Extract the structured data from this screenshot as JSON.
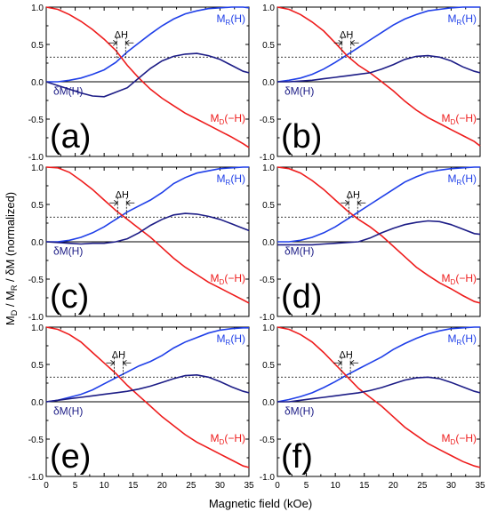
{
  "figure": {
    "ylabel_main": "M",
    "ylabel_sub1": "D",
    "ylabel_mid1": " / M",
    "ylabel_sub2": "R",
    "ylabel_rest": " / δM (normalized)",
    "xlabel": "Magnetic field (kOe)",
    "xticks": [
      "0",
      "5",
      "10",
      "15",
      "20",
      "25",
      "30",
      "35"
    ],
    "yticks": [
      "-1.0",
      "-0.5",
      "0.0",
      "0.5",
      "1.0"
    ]
  },
  "labels": {
    "mr_main": "M",
    "mr_sub": "R",
    "mr_arg": "(H)",
    "md_main": "M",
    "md_sub": "D",
    "md_arg": "(−H)",
    "dm": "δM(H)",
    "dh": "ΔH"
  },
  "colors": {
    "MR": "#1f3fe8",
    "MD": "#ee1c1c",
    "dM": "#1c1c86",
    "axis": "#000000"
  },
  "chart_data": [
    {
      "type": "line",
      "panel": "(a)",
      "xlim": [
        0,
        35
      ],
      "ylim": [
        -1.0,
        1.0
      ],
      "hline": 0.33,
      "series": [
        {
          "name": "M_R(H)",
          "x": [
            0,
            2,
            4,
            6,
            8,
            10,
            12,
            14,
            16,
            18,
            20,
            22,
            24,
            26,
            28,
            30,
            32,
            34,
            35
          ],
          "y": [
            0.0,
            0.0,
            0.02,
            0.05,
            0.1,
            0.16,
            0.26,
            0.4,
            0.52,
            0.64,
            0.75,
            0.84,
            0.91,
            0.95,
            0.98,
            0.99,
            1.0,
            1.0,
            0.99
          ]
        },
        {
          "name": "M_D(−H)",
          "x": [
            0,
            2,
            4,
            6,
            8,
            10,
            12,
            14,
            16,
            18,
            20,
            22,
            24,
            26,
            28,
            30,
            32,
            34,
            35
          ],
          "y": [
            1.0,
            0.97,
            0.9,
            0.81,
            0.7,
            0.57,
            0.42,
            0.22,
            0.05,
            -0.1,
            -0.22,
            -0.32,
            -0.42,
            -0.5,
            -0.58,
            -0.66,
            -0.74,
            -0.83,
            -0.88
          ]
        },
        {
          "name": "δM(H)",
          "x": [
            0,
            2,
            4,
            6,
            8,
            10,
            12,
            14,
            16,
            18,
            20,
            22,
            24,
            26,
            28,
            30,
            32,
            34,
            35
          ],
          "y": [
            0.0,
            -0.05,
            -0.1,
            -0.15,
            -0.19,
            -0.2,
            -0.14,
            -0.08,
            0.05,
            0.18,
            0.28,
            0.34,
            0.37,
            0.38,
            0.35,
            0.3,
            0.22,
            0.14,
            0.12
          ]
        }
      ]
    },
    {
      "type": "line",
      "panel": "(b)",
      "xlim": [
        0,
        35
      ],
      "ylim": [
        -1.0,
        1.0
      ],
      "hline": 0.33,
      "series": [
        {
          "name": "M_R(H)",
          "x": [
            0,
            2,
            4,
            6,
            8,
            10,
            12,
            14,
            16,
            18,
            20,
            22,
            24,
            26,
            28,
            30,
            32,
            34,
            35
          ],
          "y": [
            0.0,
            0.02,
            0.05,
            0.1,
            0.17,
            0.26,
            0.36,
            0.46,
            0.56,
            0.66,
            0.76,
            0.84,
            0.9,
            0.95,
            0.97,
            0.99,
            1.0,
            1.0,
            1.0
          ]
        },
        {
          "name": "M_D(−H)",
          "x": [
            0,
            2,
            4,
            6,
            8,
            10,
            12,
            14,
            16,
            18,
            20,
            22,
            24,
            26,
            28,
            30,
            32,
            34,
            35
          ],
          "y": [
            1.0,
            0.97,
            0.9,
            0.8,
            0.68,
            0.52,
            0.35,
            0.22,
            0.12,
            0.0,
            -0.12,
            -0.26,
            -0.38,
            -0.48,
            -0.56,
            -0.64,
            -0.72,
            -0.8,
            -0.86
          ]
        },
        {
          "name": "δM(H)",
          "x": [
            0,
            2,
            4,
            6,
            8,
            10,
            12,
            14,
            16,
            18,
            20,
            22,
            24,
            26,
            28,
            30,
            32,
            34,
            35
          ],
          "y": [
            0.0,
            0.0,
            0.01,
            0.02,
            0.04,
            0.06,
            0.08,
            0.1,
            0.12,
            0.17,
            0.23,
            0.3,
            0.34,
            0.35,
            0.33,
            0.28,
            0.2,
            0.14,
            0.12
          ]
        }
      ]
    },
    {
      "type": "line",
      "panel": "(c)",
      "xlim": [
        0,
        35
      ],
      "ylim": [
        -1.0,
        1.0
      ],
      "hline": 0.33,
      "series": [
        {
          "name": "M_R(H)",
          "x": [
            0,
            2,
            4,
            6,
            8,
            10,
            12,
            14,
            16,
            18,
            20,
            22,
            24,
            26,
            28,
            30,
            32,
            34,
            35
          ],
          "y": [
            0.0,
            0.0,
            0.02,
            0.06,
            0.12,
            0.2,
            0.3,
            0.4,
            0.48,
            0.56,
            0.66,
            0.78,
            0.86,
            0.92,
            0.95,
            0.98,
            0.99,
            1.0,
            1.0
          ]
        },
        {
          "name": "M_D(−H)",
          "x": [
            0,
            2,
            4,
            6,
            8,
            10,
            12,
            14,
            16,
            18,
            20,
            22,
            24,
            26,
            28,
            30,
            32,
            34,
            35
          ],
          "y": [
            1.0,
            0.99,
            0.93,
            0.82,
            0.7,
            0.56,
            0.42,
            0.3,
            0.18,
            0.06,
            -0.08,
            -0.22,
            -0.34,
            -0.44,
            -0.54,
            -0.62,
            -0.7,
            -0.78,
            -0.82
          ]
        },
        {
          "name": "δM(H)",
          "x": [
            0,
            2,
            4,
            6,
            8,
            10,
            12,
            14,
            16,
            18,
            20,
            22,
            24,
            26,
            28,
            30,
            32,
            34,
            35
          ],
          "y": [
            0.0,
            -0.01,
            -0.02,
            -0.03,
            -0.02,
            -0.02,
            0.0,
            0.04,
            0.12,
            0.22,
            0.3,
            0.36,
            0.38,
            0.37,
            0.34,
            0.3,
            0.24,
            0.18,
            0.15
          ]
        }
      ]
    },
    {
      "type": "line",
      "panel": "(d)",
      "xlim": [
        0,
        35
      ],
      "ylim": [
        -1.0,
        1.0
      ],
      "hline": 0.33,
      "series": [
        {
          "name": "M_R(H)",
          "x": [
            0,
            2,
            4,
            6,
            8,
            10,
            12,
            14,
            16,
            18,
            20,
            22,
            24,
            26,
            28,
            30,
            32,
            34,
            35
          ],
          "y": [
            0.0,
            0.0,
            0.02,
            0.06,
            0.12,
            0.2,
            0.3,
            0.4,
            0.5,
            0.6,
            0.7,
            0.8,
            0.87,
            0.93,
            0.96,
            0.98,
            0.99,
            1.0,
            1.0
          ]
        },
        {
          "name": "M_D(−H)",
          "x": [
            0,
            2,
            4,
            6,
            8,
            10,
            12,
            14,
            16,
            18,
            20,
            22,
            24,
            26,
            28,
            30,
            32,
            34,
            35
          ],
          "y": [
            1.0,
            0.98,
            0.92,
            0.82,
            0.7,
            0.56,
            0.42,
            0.3,
            0.2,
            0.08,
            -0.06,
            -0.2,
            -0.34,
            -0.45,
            -0.55,
            -0.63,
            -0.72,
            -0.8,
            -0.82
          ]
        },
        {
          "name": "δM(H)",
          "x": [
            0,
            2,
            4,
            6,
            8,
            10,
            12,
            14,
            16,
            18,
            20,
            22,
            24,
            26,
            28,
            30,
            32,
            34,
            35
          ],
          "y": [
            -0.04,
            -0.04,
            -0.04,
            -0.04,
            -0.03,
            -0.02,
            -0.01,
            0.0,
            0.05,
            0.12,
            0.18,
            0.23,
            0.26,
            0.28,
            0.27,
            0.23,
            0.17,
            0.11,
            0.1
          ]
        }
      ]
    },
    {
      "type": "line",
      "panel": "(e)",
      "xlim": [
        0,
        35
      ],
      "ylim": [
        -1.0,
        1.0
      ],
      "hline": 0.33,
      "series": [
        {
          "name": "M_R(H)",
          "x": [
            0,
            2,
            4,
            6,
            8,
            10,
            12,
            14,
            16,
            18,
            20,
            22,
            24,
            26,
            28,
            30,
            32,
            34,
            35
          ],
          "y": [
            0.0,
            0.02,
            0.06,
            0.1,
            0.16,
            0.24,
            0.32,
            0.4,
            0.48,
            0.54,
            0.62,
            0.72,
            0.8,
            0.86,
            0.92,
            0.96,
            0.98,
            0.99,
            0.99
          ]
        },
        {
          "name": "M_D(−H)",
          "x": [
            0,
            2,
            4,
            6,
            8,
            10,
            12,
            14,
            16,
            18,
            20,
            22,
            24,
            26,
            28,
            30,
            32,
            34,
            35
          ],
          "y": [
            1.0,
            0.97,
            0.9,
            0.8,
            0.66,
            0.52,
            0.38,
            0.22,
            0.08,
            -0.06,
            -0.2,
            -0.32,
            -0.44,
            -0.54,
            -0.62,
            -0.7,
            -0.78,
            -0.86,
            -0.88
          ]
        },
        {
          "name": "δM(H)",
          "x": [
            0,
            2,
            4,
            6,
            8,
            10,
            12,
            14,
            16,
            18,
            20,
            22,
            24,
            26,
            28,
            30,
            32,
            34,
            35
          ],
          "y": [
            0.0,
            0.02,
            0.04,
            0.06,
            0.08,
            0.1,
            0.12,
            0.14,
            0.17,
            0.21,
            0.26,
            0.31,
            0.35,
            0.36,
            0.33,
            0.27,
            0.2,
            0.14,
            0.12
          ]
        }
      ]
    },
    {
      "type": "line",
      "panel": "(f)",
      "xlim": [
        0,
        35
      ],
      "ylim": [
        -1.0,
        1.0
      ],
      "hline": 0.33,
      "series": [
        {
          "name": "M_R(H)",
          "x": [
            0,
            2,
            4,
            6,
            8,
            10,
            12,
            14,
            16,
            18,
            20,
            22,
            24,
            26,
            28,
            30,
            32,
            34,
            35
          ],
          "y": [
            0.0,
            0.03,
            0.07,
            0.12,
            0.19,
            0.27,
            0.36,
            0.44,
            0.52,
            0.6,
            0.7,
            0.78,
            0.85,
            0.91,
            0.95,
            0.98,
            0.99,
            1.0,
            1.0
          ]
        },
        {
          "name": "M_D(−H)",
          "x": [
            0,
            2,
            4,
            6,
            8,
            10,
            12,
            14,
            16,
            18,
            20,
            22,
            24,
            26,
            28,
            30,
            32,
            34,
            35
          ],
          "y": [
            1.0,
            0.97,
            0.9,
            0.8,
            0.66,
            0.5,
            0.34,
            0.18,
            0.06,
            -0.06,
            -0.2,
            -0.34,
            -0.45,
            -0.56,
            -0.64,
            -0.72,
            -0.8,
            -0.86,
            -0.88
          ]
        },
        {
          "name": "δM(H)",
          "x": [
            0,
            2,
            4,
            6,
            8,
            10,
            12,
            14,
            16,
            18,
            20,
            22,
            24,
            26,
            28,
            30,
            32,
            34,
            35
          ],
          "y": [
            0.0,
            0.0,
            0.02,
            0.04,
            0.06,
            0.08,
            0.1,
            0.12,
            0.15,
            0.19,
            0.24,
            0.29,
            0.32,
            0.33,
            0.31,
            0.26,
            0.2,
            0.14,
            0.12
          ]
        }
      ]
    }
  ]
}
